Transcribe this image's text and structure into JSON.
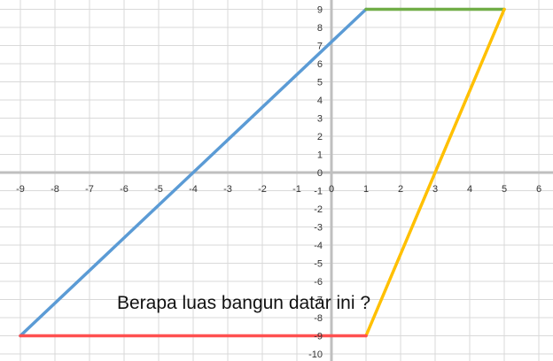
{
  "question": "Berapa luas bangun datar ini ?",
  "chart_data": {
    "type": "line",
    "xlim": [
      -9,
      6
    ],
    "ylim": [
      -10,
      9
    ],
    "x_ticks": [
      "-9",
      "-8",
      "-7",
      "-6",
      "-5",
      "-4",
      "-3",
      "-2",
      "-1",
      "0",
      "1",
      "2",
      "3",
      "4",
      "5",
      "6"
    ],
    "y_ticks": [
      "9",
      "8",
      "7",
      "6",
      "5",
      "4",
      "3",
      "2",
      "1",
      "0",
      "-1",
      "-2",
      "-3",
      "-4",
      "-5",
      "-6",
      "-7",
      "-8",
      "-9",
      "-10"
    ],
    "grid": true,
    "series": [
      {
        "color": "#5b9bd5",
        "points": [
          [
            -9,
            -9
          ],
          [
            1,
            9
          ]
        ]
      },
      {
        "color": "#70ad47",
        "points": [
          [
            1,
            9
          ],
          [
            5,
            9
          ]
        ]
      },
      {
        "color": "#ffc000",
        "points": [
          [
            5,
            9
          ],
          [
            1,
            -9
          ]
        ]
      },
      {
        "color": "#ff5050",
        "points": [
          [
            1,
            -9
          ],
          [
            -9,
            -9
          ]
        ]
      }
    ]
  }
}
